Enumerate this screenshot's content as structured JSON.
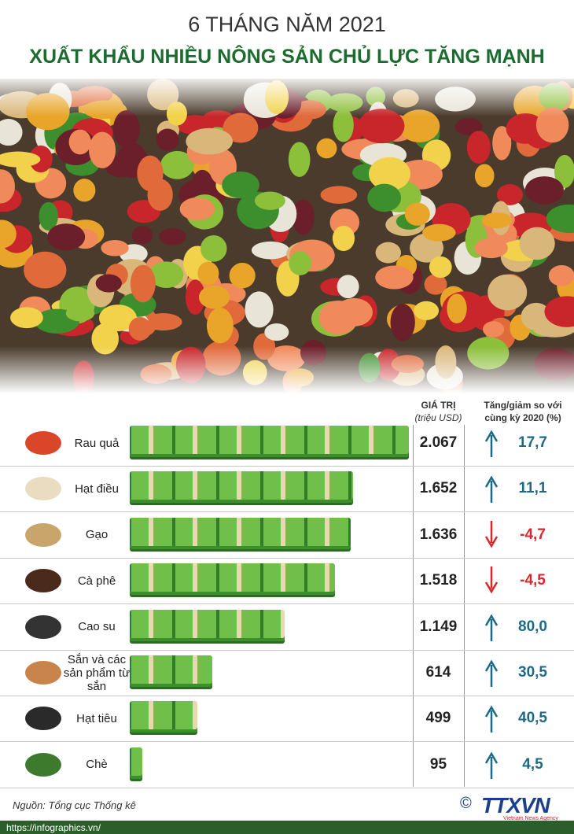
{
  "chart_data": {
    "type": "bar",
    "title": "6 THÁNG NĂM 2021",
    "subtitle": "XUẤT KHẨU NHIỀU NÔNG SẢN CHỦ LỰC TĂNG MẠNH",
    "value_header": "GIÁ TRỊ",
    "value_unit": "(triệu USD)",
    "change_header": [
      "Tăng/giảm so với",
      "cùng kỳ 2020 (%)"
    ],
    "categories": [
      "Rau quả",
      "Hạt điều",
      "Gạo",
      "Cà phê",
      "Cao su",
      "Sắn và các sản phẩm từ sắn",
      "Hạt tiêu",
      "Chè"
    ],
    "values": [
      2067,
      1652,
      1636,
      1518,
      1149,
      614,
      499,
      95
    ],
    "value_labels": [
      "2.067",
      "1.652",
      "1.636",
      "1.518",
      "1.149",
      "614",
      "499",
      "95"
    ],
    "changes": [
      17.7,
      11.1,
      -4.7,
      -4.5,
      80.0,
      30.5,
      40.5,
      4.5
    ],
    "change_labels": [
      "17,7",
      "11,1",
      "-4,7",
      "-4,5",
      "80,0",
      "30,5",
      "40,5",
      "4,5"
    ],
    "color": "#5aa83a",
    "up_color": "#1e6a86",
    "down_color": "#d7282f",
    "source": "Nguồn: Tổng cục Thống kê",
    "url": "https://infographics.vn/",
    "logo": "TTXVN",
    "logo_sub": "Vietnam News Agency"
  }
}
